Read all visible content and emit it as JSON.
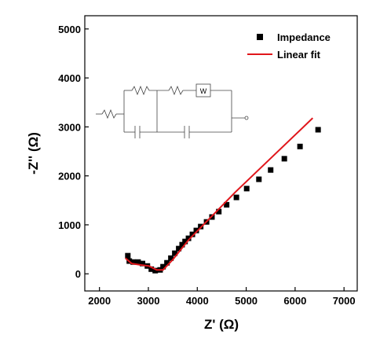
{
  "chart_data": {
    "type": "scatter",
    "x_label": "Z' (Ω)",
    "y_label": "-Z'' (Ω)",
    "xlim": [
      1700,
      7270
    ],
    "ylim": [
      -350,
      5270
    ],
    "xticks": [
      2000,
      3000,
      4000,
      5000,
      6000,
      7000
    ],
    "yticks": [
      0,
      1000,
      2000,
      3000,
      4000,
      5000
    ],
    "legend": "upper right",
    "annotations": [
      "W"
    ],
    "series": [
      {
        "name": "Impedance",
        "type": "scatter",
        "color": "#000000",
        "x": [
          2580,
          2610,
          2690,
          2790,
          2880,
          2980,
          3060,
          3140,
          3240,
          3300,
          3380,
          3460,
          3540,
          3620,
          3690,
          3750,
          3820,
          3900,
          3980,
          4070,
          4190,
          4300,
          4440,
          4600,
          4800,
          5010,
          5260,
          5500,
          5780,
          6100,
          6470
        ],
        "values": [
          370,
          260,
          240,
          240,
          210,
          160,
          95,
          65,
          80,
          145,
          225,
          320,
          420,
          515,
          595,
          660,
          725,
          805,
          885,
          965,
          1060,
          1160,
          1270,
          1410,
          1560,
          1740,
          1930,
          2120,
          2350,
          2600,
          2942
        ]
      },
      {
        "name": "Linear fit",
        "type": "line",
        "color": "#e0161b",
        "x": [
          2530,
          2660,
          2850,
          3010,
          3170,
          3300,
          3500,
          3820,
          4780,
          6360
        ],
        "values": [
          320,
          210,
          180,
          160,
          80,
          80,
          290,
          690,
          1670,
          3180
        ]
      }
    ]
  }
}
